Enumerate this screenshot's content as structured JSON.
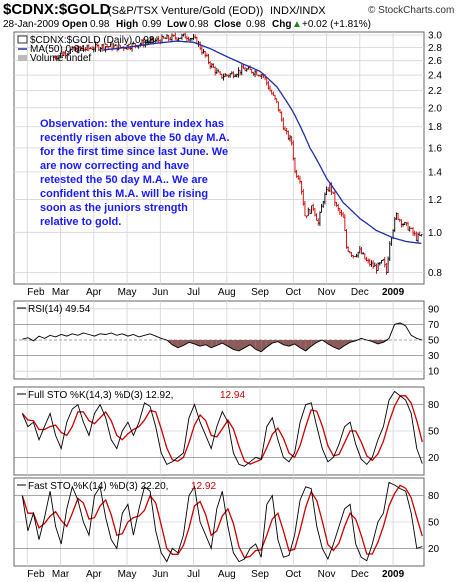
{
  "header": {
    "symbol": "$CDNX:$GOLD",
    "description": "(S&P/TSX Venture/Gold (EOD))",
    "exchange": "INDX/INDX",
    "brand": "© StockCharts.com",
    "date": "28-Jan-2009",
    "open_label": "Open",
    "open": "0.98",
    "high_label": "High",
    "high": "0.99",
    "low_label": "Low",
    "low": "0.98",
    "close_label": "Close",
    "close": "0.98",
    "chg_label": "Chg",
    "chg": "+0.02 (+1.81%)",
    "chg_arrow": "▲"
  },
  "price_legend": {
    "line1": "$CDNX:$GOLD (Daily) 0.98",
    "line2": "MA(50) 0.94",
    "line3": "Volume undef"
  },
  "rsi_legend": "RSI(14) 49.54",
  "full_sto_legend": {
    "label": "Full STO %K(14,3) %D(3) 12.92,",
    "value": "12.94"
  },
  "fast_sto_legend": {
    "label": "Fast STO %K(14) %D(3) 22.20,",
    "value": "12.92"
  },
  "annotation": [
    "Observation: the venture index has",
    "recently risen above the 50 day M.A.",
    "for the first time since last June. We",
    "are now correcting and have",
    "retested the 50 day M.A.. We are",
    "confident this M.A. will be rising",
    "soon as the juniors strength",
    "relative to gold."
  ],
  "colors": {
    "up": "#000000",
    "down": "#cc0000",
    "ma": "#1f2fa8",
    "k_line": "#000000",
    "d_line": "#cc0000",
    "rsi_fill": "#8b5a5a",
    "annotation": "#1a1aff"
  },
  "chart_data": [
    {
      "type": "line",
      "title": "$CDNX:$GOLD (S&P/TSX Venture/Gold (EOD))",
      "scale": "log",
      "ylim": [
        0.75,
        3.05
      ],
      "y_ticks": [
        0.8,
        1.0,
        1.2,
        1.4,
        1.6,
        1.8,
        2.0,
        2.2,
        2.4,
        2.6,
        2.8,
        3.0
      ],
      "y_tick_labels": [
        "0.8",
        "1.0",
        "1.2",
        "1.4",
        "1.6",
        "1.8",
        "2.0",
        "2.2",
        "2.4",
        "2.6",
        "2.8",
        "3.0"
      ],
      "x_tick_labels": [
        "Feb",
        "Mar",
        "Apr",
        "May",
        "Jun",
        "Jul",
        "Aug",
        "Sep",
        "Oct",
        "Nov",
        "Dec",
        "2009"
      ],
      "x_tick_months": [
        1,
        2,
        3,
        4,
        5,
        6,
        7,
        8,
        9,
        10,
        11,
        12
      ],
      "x_tick_bold": [
        false,
        false,
        false,
        false,
        false,
        false,
        false,
        false,
        false,
        false,
        false,
        true
      ],
      "x_range_months": [
        0.6,
        12.93
      ],
      "price_knots": [
        [
          1.8,
          2.65
        ],
        [
          2.3,
          2.75
        ],
        [
          2.8,
          2.78
        ],
        [
          3.3,
          2.82
        ],
        [
          3.8,
          2.8
        ],
        [
          4.3,
          2.85
        ],
        [
          4.8,
          2.9
        ],
        [
          5.3,
          2.95
        ],
        [
          5.8,
          2.98
        ],
        [
          6.1,
          2.9
        ],
        [
          6.25,
          2.75
        ],
        [
          6.5,
          2.55
        ],
        [
          6.8,
          2.38
        ],
        [
          7.2,
          2.42
        ],
        [
          7.5,
          2.48
        ],
        [
          7.8,
          2.45
        ],
        [
          8.1,
          2.4
        ],
        [
          8.3,
          2.2
        ],
        [
          8.5,
          2.05
        ],
        [
          8.75,
          1.75
        ],
        [
          8.95,
          1.65
        ],
        [
          9.05,
          1.4
        ],
        [
          9.2,
          1.35
        ],
        [
          9.35,
          1.1
        ],
        [
          9.6,
          1.15
        ],
        [
          9.75,
          1.05
        ],
        [
          9.9,
          1.2
        ],
        [
          10.1,
          1.3
        ],
        [
          10.3,
          1.15
        ],
        [
          10.5,
          1.08
        ],
        [
          10.6,
          0.92
        ],
        [
          10.8,
          0.88
        ],
        [
          11.0,
          0.9
        ],
        [
          11.2,
          0.85
        ],
        [
          11.5,
          0.82
        ],
        [
          11.7,
          0.85
        ],
        [
          11.8,
          0.8
        ],
        [
          11.9,
          0.95
        ],
        [
          12.1,
          1.1
        ],
        [
          12.3,
          1.05
        ],
        [
          12.5,
          1.02
        ],
        [
          12.7,
          0.97
        ],
        [
          12.85,
          0.98
        ]
      ],
      "series": [
        {
          "name": "$CDNX:$GOLD (Daily) 0.98",
          "values_ref": "price_knots"
        },
        {
          "name": "MA(50) 0.94",
          "values_ref": "ma_knots"
        }
      ],
      "ma_knots": [
        [
          3.3,
          2.76
        ],
        [
          4.0,
          2.8
        ],
        [
          4.8,
          2.86
        ],
        [
          5.5,
          2.9
        ],
        [
          6.0,
          2.88
        ],
        [
          6.5,
          2.78
        ],
        [
          7.0,
          2.66
        ],
        [
          7.5,
          2.55
        ],
        [
          8.0,
          2.45
        ],
        [
          8.5,
          2.25
        ],
        [
          9.0,
          1.95
        ],
        [
          9.5,
          1.6
        ],
        [
          10.0,
          1.35
        ],
        [
          10.5,
          1.18
        ],
        [
          11.0,
          1.08
        ],
        [
          11.5,
          1.01
        ],
        [
          12.0,
          0.97
        ],
        [
          12.4,
          0.95
        ],
        [
          12.85,
          0.94
        ]
      ]
    },
    {
      "type": "line",
      "title": "RSI(14) 49.54",
      "ylim": [
        0,
        100
      ],
      "y_ticks": [
        10,
        30,
        50,
        70,
        90
      ],
      "y_tick_labels": [
        "10",
        "30",
        "50",
        "70",
        "90"
      ],
      "reference_levels": [
        30,
        50,
        70
      ],
      "values": [
        51,
        53,
        49,
        55,
        52,
        56,
        54,
        57,
        55,
        58,
        56,
        59,
        57,
        55,
        58,
        57,
        59,
        56,
        58,
        55,
        57,
        54,
        56,
        58,
        55,
        52,
        50,
        44,
        40,
        43,
        47,
        45,
        42,
        44,
        40,
        43,
        46,
        42,
        38,
        36,
        40,
        44,
        38,
        35,
        41,
        46,
        48,
        44,
        42,
        45,
        40,
        36,
        42,
        47,
        50,
        45,
        41,
        38,
        43,
        47,
        49,
        52,
        50,
        48,
        45,
        47,
        52,
        70,
        72,
        68,
        56,
        52,
        50
      ]
    },
    {
      "type": "line",
      "title": "Full STO %K(14,3) %D(3) 12.92, 12.94",
      "ylim": [
        0,
        100
      ],
      "y_ticks": [
        20,
        50,
        80
      ],
      "y_tick_labels": [
        "20",
        "50",
        "80"
      ],
      "reference_levels": [
        20,
        80
      ],
      "series": [
        {
          "name": "%K(14,3)",
          "values": [
            70,
            55,
            60,
            40,
            55,
            70,
            45,
            30,
            60,
            75,
            80,
            60,
            45,
            70,
            80,
            65,
            40,
            30,
            50,
            60,
            45,
            60,
            82,
            78,
            55,
            25,
            12,
            15,
            20,
            25,
            65,
            80,
            60,
            45,
            30,
            55,
            72,
            60,
            25,
            12,
            10,
            15,
            20,
            18,
            55,
            65,
            40,
            20,
            15,
            25,
            60,
            80,
            82,
            55,
            30,
            15,
            20,
            35,
            55,
            60,
            35,
            18,
            12,
            20,
            40,
            55,
            85,
            95,
            90,
            85,
            70,
            30,
            13
          ]
        },
        {
          "name": "%D(3)",
          "values_ref": "smoothed"
        }
      ]
    },
    {
      "type": "line",
      "title": "Fast STO %K(14) %D(3) 22.20, 12.92",
      "ylim": [
        0,
        100
      ],
      "y_ticks": [
        20,
        50,
        80
      ],
      "y_tick_labels": [
        "20",
        "50",
        "80"
      ],
      "reference_levels": [
        20,
        80
      ],
      "x_tick_labels": [
        "Feb",
        "Mar",
        "Apr",
        "May",
        "Jun",
        "Jul",
        "Aug",
        "Sep",
        "Oct",
        "Nov",
        "Dec",
        "2009"
      ],
      "series": [
        {
          "name": "%K(14)",
          "values": [
            80,
            40,
            60,
            30,
            55,
            85,
            45,
            25,
            65,
            90,
            75,
            50,
            35,
            80,
            90,
            55,
            30,
            20,
            60,
            70,
            35,
            65,
            90,
            85,
            40,
            15,
            5,
            20,
            15,
            35,
            80,
            90,
            50,
            35,
            20,
            65,
            85,
            45,
            15,
            5,
            8,
            20,
            25,
            10,
            70,
            80,
            30,
            10,
            12,
            35,
            75,
            90,
            88,
            45,
            20,
            8,
            25,
            45,
            65,
            70,
            25,
            10,
            6,
            25,
            50,
            60,
            95,
            92,
            88,
            85,
            60,
            20,
            22
          ]
        },
        {
          "name": "%D(3)",
          "values_ref": "smoothed"
        }
      ]
    }
  ]
}
